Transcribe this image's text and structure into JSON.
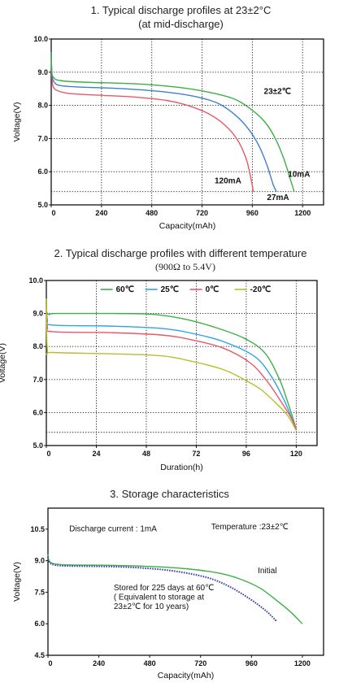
{
  "charts": [
    {
      "type": "line",
      "title": "1. Typical discharge profiles at 23±2°C",
      "subtitle": "(at mid-discharge)",
      "xlabel": "Capacity(mAh)",
      "ylabel": "Voltage(V)",
      "xlim": [
        0,
        1300
      ],
      "ylim": [
        5.0,
        10.0
      ],
      "xticks": [
        0,
        240,
        480,
        720,
        960,
        1200
      ],
      "yticks": [
        5.0,
        6.0,
        7.0,
        8.0,
        9.0,
        10.0
      ],
      "grid": true,
      "cutoff": 5.4,
      "annotations": [
        {
          "text": "23±2℃",
          "x": 1015,
          "y": 8.35
        },
        {
          "text": "10mA",
          "x": 1130,
          "y": 5.85
        },
        {
          "text": "120mA",
          "x": 780,
          "y": 5.65
        },
        {
          "text": "27mA",
          "x": 1030,
          "y": 5.15
        }
      ],
      "series": [
        {
          "label": "120mA",
          "color": "#e8586a",
          "points": [
            [
              0,
              9.6
            ],
            [
              3,
              8.9
            ],
            [
              10,
              8.55
            ],
            [
              40,
              8.42
            ],
            [
              100,
              8.35
            ],
            [
              250,
              8.3
            ],
            [
              400,
              8.25
            ],
            [
              550,
              8.15
            ],
            [
              650,
              8.0
            ],
            [
              750,
              7.75
            ],
            [
              830,
              7.4
            ],
            [
              890,
              6.95
            ],
            [
              930,
              6.4
            ],
            [
              950,
              5.9
            ],
            [
              965,
              5.4
            ]
          ]
        },
        {
          "label": "27mA",
          "color": "#3e7fcf",
          "points": [
            [
              0,
              9.6
            ],
            [
              3,
              9.0
            ],
            [
              10,
              8.75
            ],
            [
              40,
              8.6
            ],
            [
              150,
              8.55
            ],
            [
              350,
              8.5
            ],
            [
              550,
              8.4
            ],
            [
              700,
              8.25
            ],
            [
              800,
              8.05
            ],
            [
              880,
              7.7
            ],
            [
              940,
              7.3
            ],
            [
              990,
              6.8
            ],
            [
              1030,
              6.2
            ],
            [
              1060,
              5.6
            ],
            [
              1075,
              5.4
            ]
          ]
        },
        {
          "label": "10mA",
          "color": "#3cb043",
          "points": [
            [
              0,
              9.6
            ],
            [
              3,
              9.0
            ],
            [
              10,
              8.85
            ],
            [
              40,
              8.75
            ],
            [
              150,
              8.7
            ],
            [
              400,
              8.65
            ],
            [
              600,
              8.55
            ],
            [
              750,
              8.4
            ],
            [
              870,
              8.2
            ],
            [
              950,
              7.9
            ],
            [
              1020,
              7.5
            ],
            [
              1070,
              7.0
            ],
            [
              1110,
              6.4
            ],
            [
              1140,
              5.8
            ],
            [
              1160,
              5.4
            ]
          ]
        }
      ]
    },
    {
      "type": "line",
      "title": "2. Typical discharge profiles with different temperature",
      "subtitle": "(900Ω to 5.4V)",
      "xlabel": "Duration(h)",
      "ylabel": "Voltage(V)",
      "xlim": [
        0,
        130
      ],
      "ylim": [
        5.0,
        10.0
      ],
      "xticks": [
        0,
        24,
        48,
        72,
        96,
        120
      ],
      "yticks": [
        5.0,
        6.0,
        7.0,
        8.0,
        9.0,
        10.0
      ],
      "grid": true,
      "cutoff": 5.4,
      "legend_position": "top",
      "series": [
        {
          "label": "60℃",
          "color": "#3cb043",
          "points": [
            [
              0,
              9.45
            ],
            [
              0.5,
              9.0
            ],
            [
              5,
              9.0
            ],
            [
              30,
              9.0
            ],
            [
              50,
              8.98
            ],
            [
              65,
              8.85
            ],
            [
              80,
              8.6
            ],
            [
              95,
              8.25
            ],
            [
              105,
              7.8
            ],
            [
              112,
              7.0
            ],
            [
              116,
              6.3
            ],
            [
              120,
              5.5
            ]
          ]
        },
        {
          "label": "25℃",
          "color": "#2fa3e8",
          "points": [
            [
              0,
              9.45
            ],
            [
              0.5,
              8.8
            ],
            [
              3,
              8.65
            ],
            [
              30,
              8.62
            ],
            [
              55,
              8.55
            ],
            [
              70,
              8.4
            ],
            [
              85,
              8.15
            ],
            [
              100,
              7.7
            ],
            [
              108,
              7.1
            ],
            [
              114,
              6.4
            ],
            [
              118,
              5.8
            ],
            [
              120,
              5.5
            ]
          ]
        },
        {
          "label": "0℃",
          "color": "#e8586a",
          "points": [
            [
              0,
              9.45
            ],
            [
              0.5,
              8.6
            ],
            [
              3,
              8.45
            ],
            [
              30,
              8.42
            ],
            [
              55,
              8.35
            ],
            [
              70,
              8.2
            ],
            [
              85,
              7.95
            ],
            [
              98,
              7.5
            ],
            [
              106,
              6.95
            ],
            [
              112,
              6.4
            ],
            [
              117,
              5.9
            ],
            [
              120,
              5.5
            ]
          ]
        },
        {
          "label": "-20℃",
          "color": "#b6bf2a",
          "points": [
            [
              0,
              9.45
            ],
            [
              0.5,
              7.9
            ],
            [
              3,
              7.82
            ],
            [
              30,
              7.78
            ],
            [
              55,
              7.72
            ],
            [
              70,
              7.55
            ],
            [
              85,
              7.3
            ],
            [
              95,
              7.0
            ],
            [
              103,
              6.7
            ],
            [
              110,
              6.3
            ],
            [
              116,
              5.9
            ],
            [
              120,
              5.45
            ]
          ]
        }
      ]
    },
    {
      "type": "line",
      "title": "3. Storage characteristics",
      "xlabel": "Capacity(mAh)",
      "ylabel": "Voltage(V)",
      "xlim": [
        0,
        1300
      ],
      "ylim": [
        4.5,
        11.5
      ],
      "xticks": [
        0,
        240,
        480,
        720,
        960,
        1200
      ],
      "yticks": [
        4.5,
        6.0,
        7.5,
        9.0,
        10.5
      ],
      "grid": false,
      "annotations": [
        {
          "text": "Discharge current : 1mA",
          "x": 100,
          "y": 10.4
        },
        {
          "text": "Temperature :23±2℃",
          "x": 770,
          "y": 10.5
        },
        {
          "text": "Initial",
          "x": 990,
          "y": 8.4
        },
        {
          "text": "Stored for 225 days at 60℃",
          "x": 310,
          "y": 7.6
        },
        {
          "text": "( Equivalent to storage at",
          "x": 310,
          "y": 7.15
        },
        {
          "text": "23±2℃ for 10 years)",
          "x": 310,
          "y": 6.7
        }
      ],
      "series": [
        {
          "label": "Initial",
          "color": "#3cb043",
          "points": [
            [
              0,
              9.3
            ],
            [
              5,
              9.0
            ],
            [
              30,
              8.85
            ],
            [
              100,
              8.8
            ],
            [
              300,
              8.78
            ],
            [
              500,
              8.72
            ],
            [
              650,
              8.62
            ],
            [
              800,
              8.42
            ],
            [
              900,
              8.15
            ],
            [
              1000,
              7.7
            ],
            [
              1080,
              7.1
            ],
            [
              1140,
              6.6
            ],
            [
              1200,
              6.0
            ]
          ]
        },
        {
          "label": "Stored for 225 days at 60℃",
          "color": "#3b3fa8",
          "dashed": true,
          "points": [
            [
              0,
              9.2
            ],
            [
              5,
              8.95
            ],
            [
              30,
              8.8
            ],
            [
              100,
              8.75
            ],
            [
              300,
              8.72
            ],
            [
              450,
              8.65
            ],
            [
              600,
              8.5
            ],
            [
              750,
              8.2
            ],
            [
              850,
              7.8
            ],
            [
              950,
              7.2
            ],
            [
              1030,
              6.6
            ],
            [
              1080,
              6.1
            ]
          ]
        }
      ]
    }
  ]
}
